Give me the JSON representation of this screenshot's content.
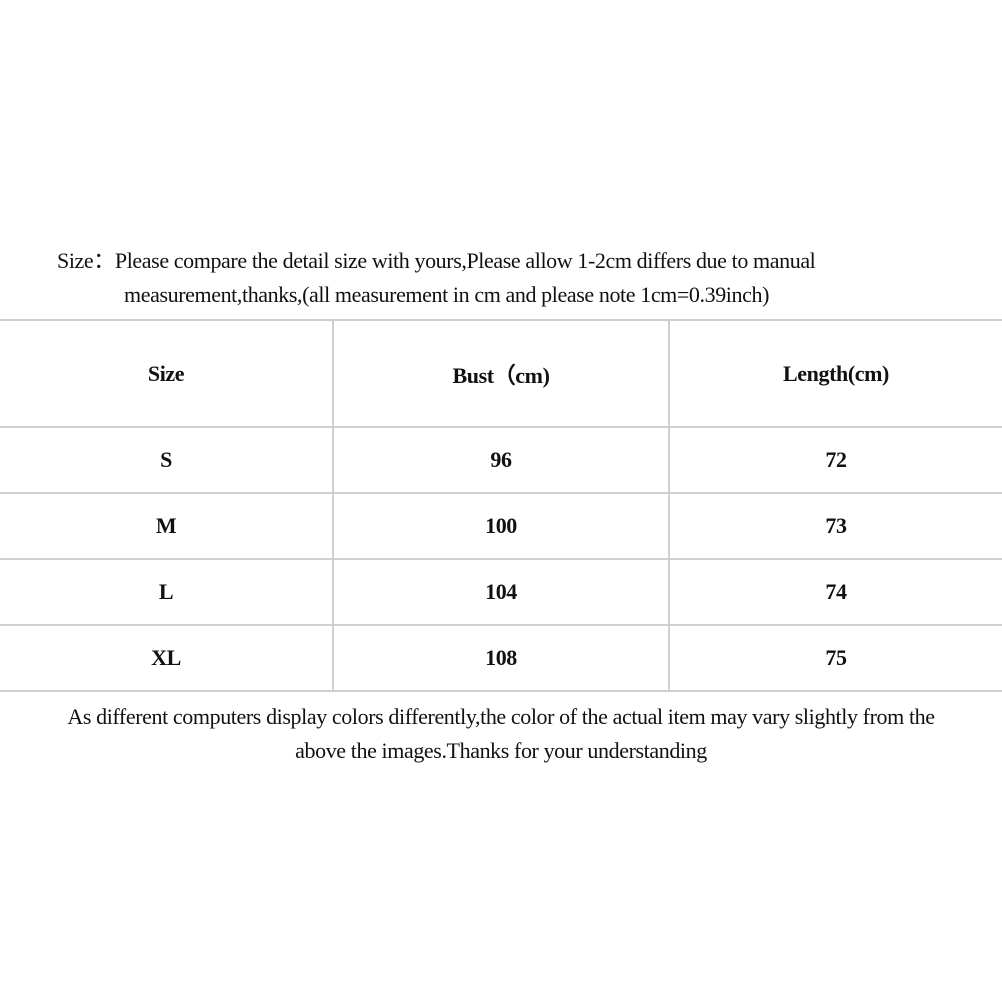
{
  "intro": {
    "line1": "Size：Please compare the detail size with yours,Please allow 1-2cm differs due to manual",
    "line2": "measurement,thanks,(all measurement in cm and please note 1cm=0.39inch)"
  },
  "table": {
    "headers": [
      "Size",
      "Bust（cm)",
      "Length(cm)"
    ],
    "rows": [
      [
        "S",
        "96",
        "72"
      ],
      [
        "M",
        "100",
        "73"
      ],
      [
        "L",
        "104",
        "74"
      ],
      [
        "XL",
        "108",
        "75"
      ]
    ]
  },
  "note": {
    "line1": "As different computers display colors differently,the color of the actual item may vary slightly from the",
    "line2": "above the images.Thanks for your understanding"
  }
}
